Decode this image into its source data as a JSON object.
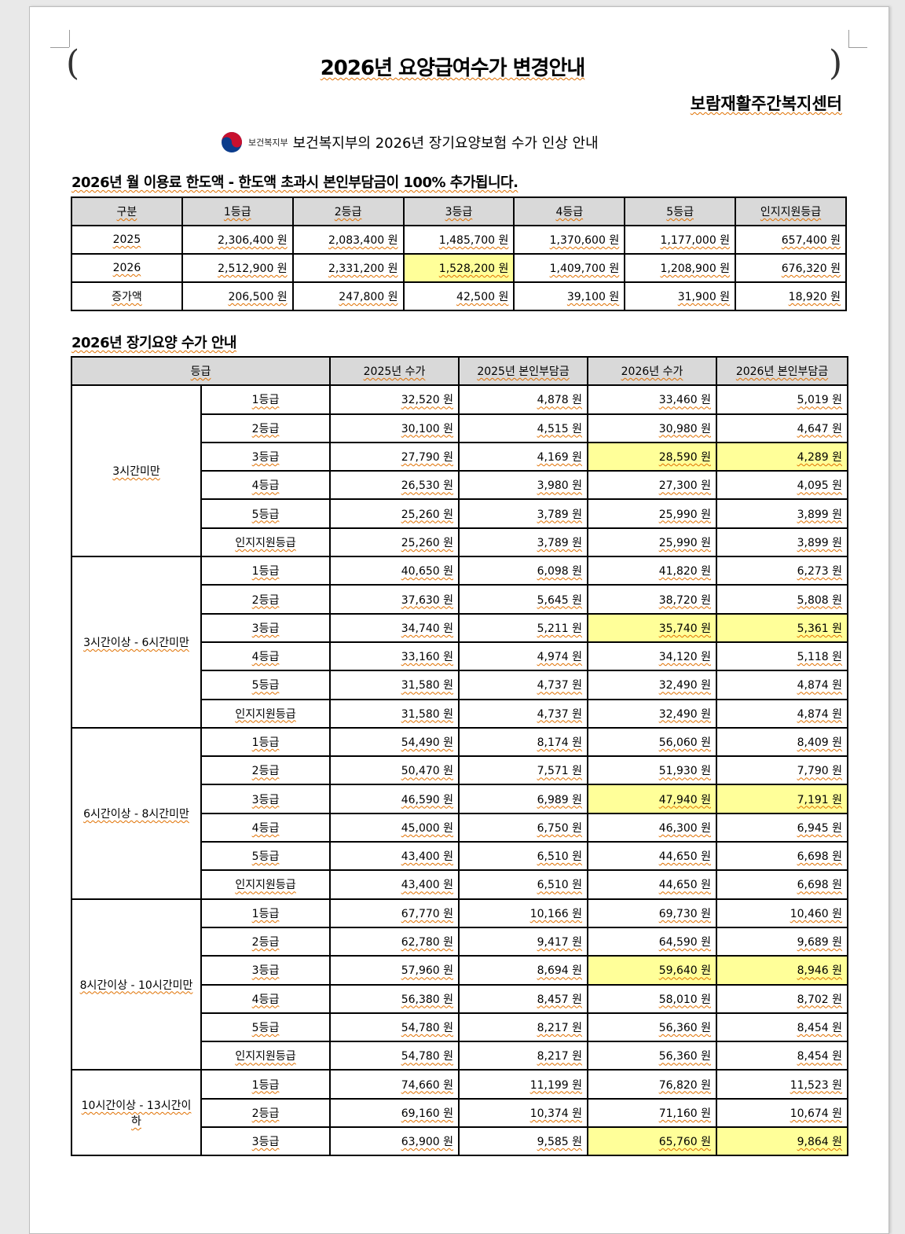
{
  "title": "2026년 요양급여수가 변경안내",
  "organization": "보람재활주간복지센터",
  "subtitle": {
    "logo_text": "보건복지부",
    "text": "보건복지부의 2026년 장기요양보험 수가 인상 안내"
  },
  "limit_section": {
    "heading": "2026년 월 이용료 한도액 - 한도액 초과시 본인부담금이 100% 추가됩니다.",
    "columns": [
      "구분",
      "1등급",
      "2등급",
      "3등급",
      "4등급",
      "5등급",
      "인지지원등급"
    ],
    "rows": [
      {
        "label": "2025",
        "values": [
          "2,306,400 원",
          "2,083,400 원",
          "1,485,700 원",
          "1,370,600 원",
          "1,177,000 원",
          "657,400 원"
        ]
      },
      {
        "label": "2026",
        "values": [
          "2,512,900 원",
          "2,331,200 원",
          "1,528,200 원",
          "1,409,700 원",
          "1,208,900 원",
          "676,320 원"
        ],
        "highlight_index": 2
      },
      {
        "label": "증가액",
        "values": [
          "206,500 원",
          "247,800 원",
          "42,500 원",
          "39,100 원",
          "31,900 원",
          "18,920 원"
        ]
      }
    ]
  },
  "fee_section": {
    "heading": "2026년 장기요양 수가 안내",
    "columns": [
      "등급",
      "2025년 수가",
      "2025년 본인부담금",
      "2026년 수가",
      "2026년 본인부담금"
    ],
    "groups": [
      {
        "label": "3시간미만",
        "rows": [
          [
            "1등급",
            "32,520 원",
            "4,878 원",
            "33,460 원",
            "5,019 원"
          ],
          [
            "2등급",
            "30,100 원",
            "4,515 원",
            "30,980 원",
            "4,647 원"
          ],
          [
            "3등급",
            "27,790 원",
            "4,169 원",
            "28,590 원",
            "4,289 원"
          ],
          [
            "4등급",
            "26,530 원",
            "3,980 원",
            "27,300 원",
            "4,095 원"
          ],
          [
            "5등급",
            "25,260 원",
            "3,789 원",
            "25,990 원",
            "3,899 원"
          ],
          [
            "인지지원등급",
            "25,260 원",
            "3,789 원",
            "25,990 원",
            "3,899 원"
          ]
        ]
      },
      {
        "label": "3시간이상 - 6시간미만",
        "rows": [
          [
            "1등급",
            "40,650 원",
            "6,098 원",
            "41,820 원",
            "6,273 원"
          ],
          [
            "2등급",
            "37,630 원",
            "5,645 원",
            "38,720 원",
            "5,808 원"
          ],
          [
            "3등급",
            "34,740 원",
            "5,211 원",
            "35,740 원",
            "5,361 원"
          ],
          [
            "4등급",
            "33,160 원",
            "4,974 원",
            "34,120 원",
            "5,118 원"
          ],
          [
            "5등급",
            "31,580 원",
            "4,737 원",
            "32,490 원",
            "4,874 원"
          ],
          [
            "인지지원등급",
            "31,580 원",
            "4,737 원",
            "32,490 원",
            "4,874 원"
          ]
        ]
      },
      {
        "label": "6시간이상 - 8시간미만",
        "rows": [
          [
            "1등급",
            "54,490 원",
            "8,174 원",
            "56,060 원",
            "8,409 원"
          ],
          [
            "2등급",
            "50,470 원",
            "7,571 원",
            "51,930 원",
            "7,790 원"
          ],
          [
            "3등급",
            "46,590 원",
            "6,989 원",
            "47,940 원",
            "7,191 원"
          ],
          [
            "4등급",
            "45,000 원",
            "6,750 원",
            "46,300 원",
            "6,945 원"
          ],
          [
            "5등급",
            "43,400 원",
            "6,510 원",
            "44,650 원",
            "6,698 원"
          ],
          [
            "인지지원등급",
            "43,400 원",
            "6,510 원",
            "44,650 원",
            "6,698 원"
          ]
        ]
      },
      {
        "label": "8시간이상 - 10시간미만",
        "rows": [
          [
            "1등급",
            "67,770 원",
            "10,166 원",
            "69,730 원",
            "10,460 원"
          ],
          [
            "2등급",
            "62,780 원",
            "9,417 원",
            "64,590 원",
            "9,689 원"
          ],
          [
            "3등급",
            "57,960 원",
            "8,694 원",
            "59,640 원",
            "8,946 원"
          ],
          [
            "4등급",
            "56,380 원",
            "8,457 원",
            "58,010 원",
            "8,702 원"
          ],
          [
            "5등급",
            "54,780 원",
            "8,217 원",
            "56,360 원",
            "8,454 원"
          ],
          [
            "인지지원등급",
            "54,780 원",
            "8,217 원",
            "56,360 원",
            "8,454 원"
          ]
        ]
      },
      {
        "label": "10시간이상 - 13시간이하",
        "rows": [
          [
            "1등급",
            "74,660 원",
            "11,199 원",
            "76,820 원",
            "11,523 원"
          ],
          [
            "2등급",
            "69,160 원",
            "10,374 원",
            "71,160 원",
            "10,674 원"
          ],
          [
            "3등급",
            "63,900 원",
            "9,585 원",
            "65,760 원",
            "9,864 원"
          ]
        ]
      }
    ],
    "highlight_grade": "3등급",
    "highlight_color": "#ffff99"
  }
}
